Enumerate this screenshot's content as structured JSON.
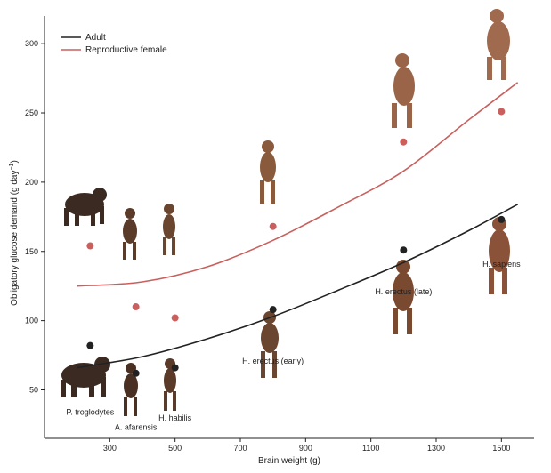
{
  "chart_data": {
    "type": "scatter",
    "xlabel": "Brain weight (g)",
    "ylabel": "Obligatory glucose demand (g day",
    "ylabel_sup": "−1",
    "ylabel_close": ")",
    "xlim": [
      100,
      1600
    ],
    "ylim": [
      15,
      320
    ],
    "xticks": [
      300,
      500,
      700,
      900,
      1100,
      1300,
      1500
    ],
    "yticks": [
      50,
      100,
      150,
      200,
      250,
      300
    ],
    "legend_position": "top-left",
    "series": [
      {
        "name": "Adult",
        "color": "#222222",
        "points": [
          {
            "x": 240,
            "y": 82
          },
          {
            "x": 380,
            "y": 62
          },
          {
            "x": 500,
            "y": 66
          },
          {
            "x": 800,
            "y": 108
          },
          {
            "x": 1200,
            "y": 151
          },
          {
            "x": 1500,
            "y": 173
          }
        ],
        "fit": [
          {
            "x": 200,
            "y": 66
          },
          {
            "x": 400,
            "y": 74
          },
          {
            "x": 600,
            "y": 87
          },
          {
            "x": 800,
            "y": 103
          },
          {
            "x": 1000,
            "y": 122
          },
          {
            "x": 1200,
            "y": 142
          },
          {
            "x": 1400,
            "y": 165
          },
          {
            "x": 1550,
            "y": 184
          }
        ]
      },
      {
        "name": "Reproductive female",
        "color": "#c9605e",
        "points": [
          {
            "x": 240,
            "y": 154
          },
          {
            "x": 380,
            "y": 110
          },
          {
            "x": 500,
            "y": 102
          },
          {
            "x": 800,
            "y": 168
          },
          {
            "x": 1200,
            "y": 229
          },
          {
            "x": 1500,
            "y": 251
          }
        ],
        "fit": [
          {
            "x": 200,
            "y": 125
          },
          {
            "x": 400,
            "y": 128
          },
          {
            "x": 600,
            "y": 139
          },
          {
            "x": 800,
            "y": 158
          },
          {
            "x": 1000,
            "y": 182
          },
          {
            "x": 1200,
            "y": 208
          },
          {
            "x": 1400,
            "y": 245
          },
          {
            "x": 1550,
            "y": 272
          }
        ]
      }
    ],
    "species_labels": [
      {
        "text": "P. troglodytes",
        "x": 240,
        "y": 32
      },
      {
        "text": "A. afarensis",
        "x": 380,
        "y": 21
      },
      {
        "text": "H. habilis",
        "x": 500,
        "y": 28
      },
      {
        "text": "H. erectus (early)",
        "x": 800,
        "y": 69
      },
      {
        "text": "H. erectus (late)",
        "x": 1200,
        "y": 119
      },
      {
        "text": "H. sapiens",
        "x": 1500,
        "y": 139
      }
    ]
  }
}
